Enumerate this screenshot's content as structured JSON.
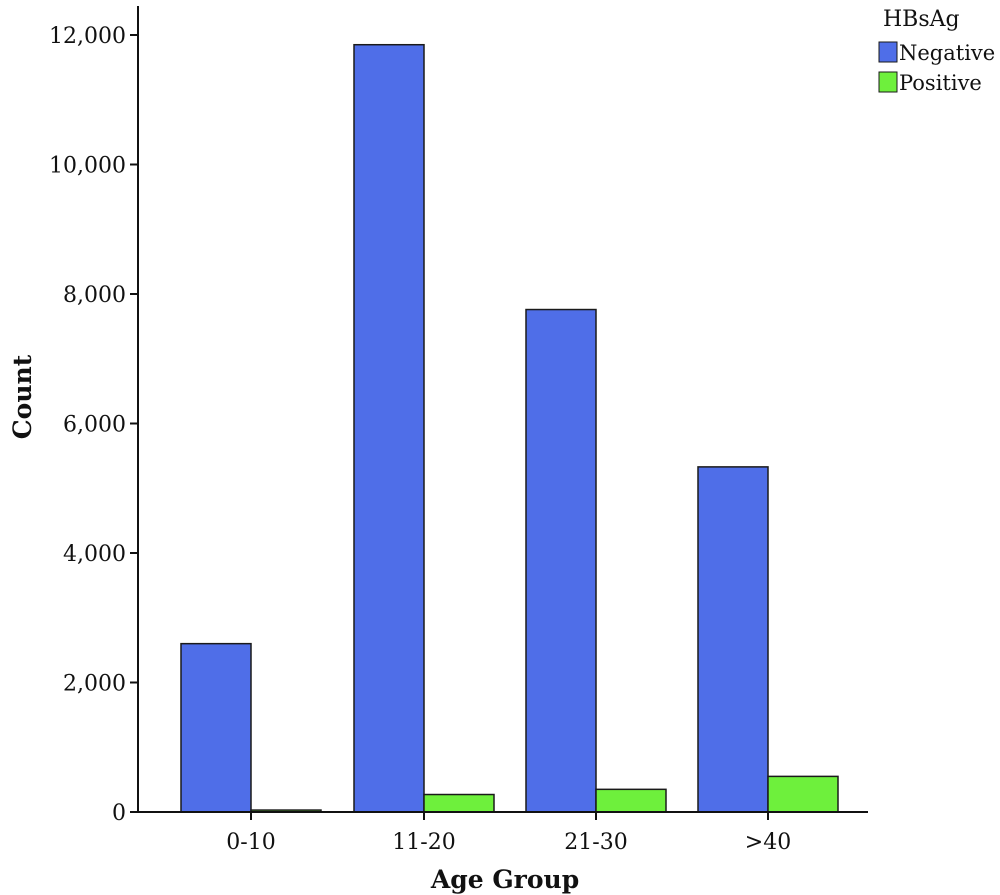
{
  "chart_data": {
    "type": "bar",
    "title": "",
    "xlabel": "Age Group",
    "ylabel": "Count",
    "categories": [
      "0-10",
      "11-20",
      "21-30",
      ">40"
    ],
    "series": [
      {
        "name": "Negative",
        "color": "#4f6ee8",
        "values": [
          2600,
          11850,
          7760,
          5330
        ]
      },
      {
        "name": "Positive",
        "color": "#6ef03c",
        "values": [
          30,
          270,
          350,
          550
        ]
      }
    ],
    "ylim": [
      0,
      12000
    ],
    "yticks": [
      0,
      2000,
      4000,
      6000,
      8000,
      10000,
      12000
    ],
    "ytick_labels": [
      "0",
      "2,000",
      "4,000",
      "6,000",
      "8,000",
      "10,000",
      "12,000"
    ],
    "legend": {
      "title": "HBsAg",
      "position": "top-right"
    },
    "grid": false
  }
}
